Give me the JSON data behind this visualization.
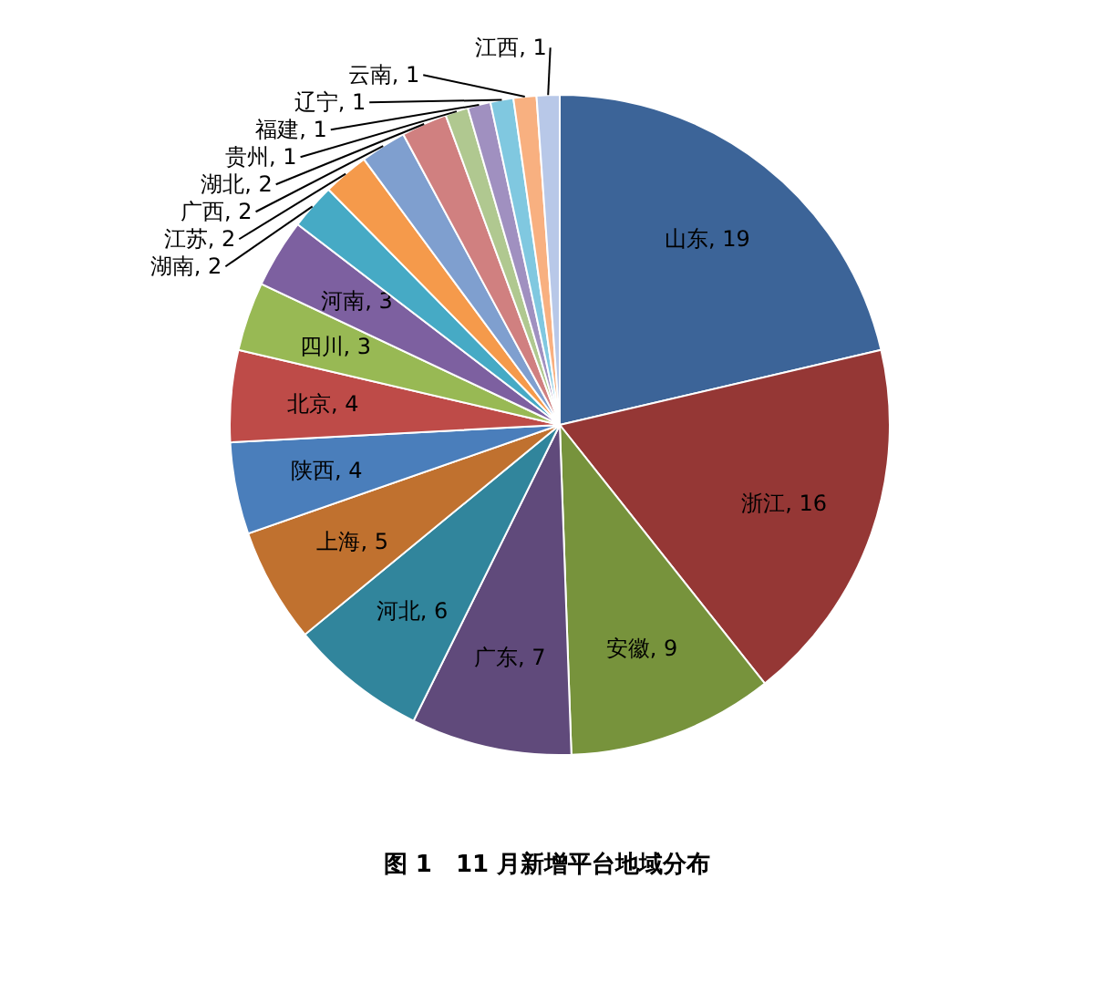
{
  "chart_data": {
    "type": "pie",
    "title": "图 1　11 月新增平台地域分布",
    "categories": [
      "山东",
      "浙江",
      "安徽",
      "广东",
      "河北",
      "上海",
      "陕西",
      "北京",
      "四川",
      "河南",
      "湖南",
      "江苏",
      "广西",
      "湖北",
      "贵州",
      "福建",
      "辽宁",
      "云南",
      "江西"
    ],
    "values": [
      19,
      16,
      9,
      7,
      6,
      5,
      4,
      4,
      3,
      3,
      2,
      2,
      2,
      2,
      1,
      1,
      1,
      1,
      1
    ],
    "colors": [
      "#3c6498",
      "#953735",
      "#77933c",
      "#604a7b",
      "#31859c",
      "#c0712f",
      "#4a7ebb",
      "#be4b48",
      "#98b954",
      "#7d60a0",
      "#46aac5",
      "#f59a4b",
      "#7f9fcf",
      "#d08080",
      "#b0c890",
      "#a090c0",
      "#80c8e0",
      "#f8b080",
      "#b8c8e8"
    ],
    "value_labels": [
      ", 19",
      ", 16",
      ", 9",
      ", 7",
      ", 6",
      ", 5",
      ", 4",
      ", 4",
      ", 3",
      ", 3",
      ", 2",
      ", 2",
      ", 2",
      ", 2",
      ", 1",
      ", 1",
      ", 1",
      ", 1",
      ", 1"
    ]
  }
}
